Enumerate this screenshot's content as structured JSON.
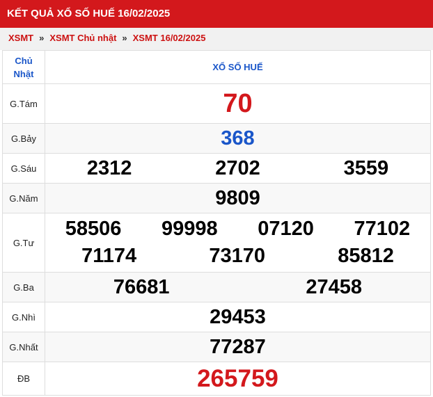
{
  "title": "KẾT QUẢ XỔ SỐ HUẾ 16/02/2025",
  "breadcrumb": [
    "XSMT",
    "XSMT Chủ nhật",
    "XSMT 16/02/2025"
  ],
  "breadcrumb_sep": "»",
  "header": {
    "day": "Chủ Nhật",
    "name": "XỔ SỐ HUẾ"
  },
  "prizes": [
    {
      "label": "G.Tám",
      "numbers": [
        "70"
      ]
    },
    {
      "label": "G.Bảy",
      "numbers": [
        "368"
      ]
    },
    {
      "label": "G.Sáu",
      "numbers": [
        "2312",
        "2702",
        "3559"
      ]
    },
    {
      "label": "G.Năm",
      "numbers": [
        "9809"
      ]
    },
    {
      "label": "G.Tư",
      "numbers": [
        "58506",
        "99998",
        "07120",
        "77102",
        "71174",
        "73170",
        "85812"
      ]
    },
    {
      "label": "G.Ba",
      "numbers": [
        "76681",
        "27458"
      ]
    },
    {
      "label": "G.Nhì",
      "numbers": [
        "29453"
      ]
    },
    {
      "label": "G.Nhất",
      "numbers": [
        "77287"
      ]
    },
    {
      "label": "ĐB",
      "numbers": [
        "265759"
      ]
    }
  ],
  "colors": {
    "brand": "#d3181c",
    "accent": "#1a56c9"
  }
}
